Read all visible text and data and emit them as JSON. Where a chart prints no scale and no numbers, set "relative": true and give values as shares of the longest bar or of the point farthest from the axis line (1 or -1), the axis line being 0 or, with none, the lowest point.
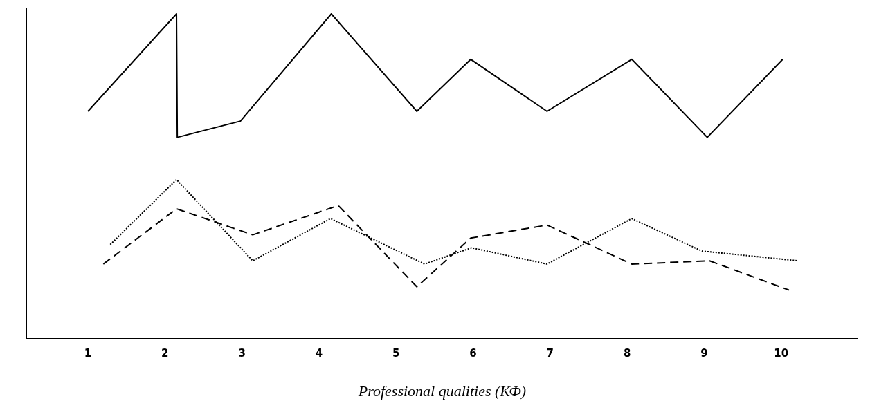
{
  "chart_data": {
    "type": "line",
    "relative": true,
    "xlabel": "Professional qualities (КФ)",
    "xlim": [
      0.2,
      11
    ],
    "xticks": [
      1,
      2,
      3,
      4,
      5,
      6,
      7,
      8,
      9,
      10
    ],
    "series": [
      {
        "color": "#000000",
        "line_style": "solid",
        "x": [
          1.0,
          2.15,
          2.16,
          2.98,
          4.16,
          5.27,
          5.97,
          6.96,
          8.06,
          9.04,
          10.02
        ],
        "values": [
          0.7,
          1,
          0.62,
          0.67,
          1,
          0.7,
          0.86,
          0.7,
          0.86,
          0.62,
          0.86
        ]
      },
      {
        "color": "#000000",
        "line_style": "dashed",
        "x": [
          1.2,
          2.15,
          3.14,
          4.25,
          5.27,
          5.97,
          6.96,
          8.06,
          9.07,
          10.1
        ],
        "values": [
          0.23,
          0.4,
          0.32,
          0.41,
          0.16,
          0.31,
          0.35,
          0.23,
          0.24,
          0.15
        ]
      },
      {
        "color": "#000000",
        "line_style": "dotted",
        "x": [
          1.29,
          2.15,
          3.14,
          4.15,
          5.37,
          5.98,
          6.96,
          8.06,
          8.97,
          10.22
        ],
        "values": [
          0.29,
          0.49,
          0.24,
          0.37,
          0.23,
          0.28,
          0.23,
          0.37,
          0.27,
          0.24
        ]
      }
    ]
  }
}
